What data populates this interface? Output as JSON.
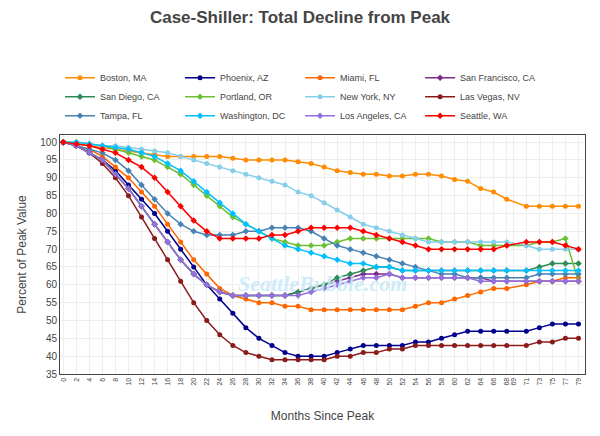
{
  "chart_data": {
    "type": "line",
    "title": "Case-Shiller: Total Decline from Peak",
    "x_label": "Months Since Peak",
    "y_label": "Percent of Peak Value",
    "annotations": [
      "SeattleBubble.com"
    ],
    "x": [
      0,
      2,
      4,
      6,
      8,
      10,
      12,
      14,
      16,
      18,
      20,
      22,
      24,
      26,
      28,
      30,
      32,
      34,
      36,
      38,
      40,
      42,
      44,
      46,
      48,
      50,
      52,
      54,
      56,
      58,
      60,
      62,
      64,
      66,
      68,
      71,
      73,
      75,
      77,
      79
    ],
    "xlim": [
      -0.5,
      80
    ],
    "xticks": [
      0,
      2,
      4,
      6,
      8,
      10,
      12,
      14,
      16,
      18,
      20,
      22,
      24,
      26,
      28,
      30,
      32,
      34,
      36,
      38,
      40,
      42,
      44,
      46,
      48,
      50,
      52,
      54,
      56,
      58,
      60,
      62,
      64,
      66,
      68,
      69,
      71,
      73,
      75,
      77,
      79
    ],
    "ylim": [
      35,
      102
    ],
    "yticks": [
      35,
      40,
      45,
      50,
      55,
      60,
      65,
      70,
      75,
      80,
      85,
      90,
      95,
      100
    ],
    "grid": true,
    "legend": "top",
    "series": [
      {
        "name": "Boston, MA",
        "color": "#FF8C00",
        "marker": "circle",
        "values": [
          100,
          99.5,
          99,
          98.5,
          98,
          97.5,
          97,
          96.5,
          96,
          96,
          96,
          96,
          96,
          95.5,
          95,
          95,
          95,
          95,
          94.5,
          94,
          93,
          92,
          91.5,
          91,
          91,
          90.5,
          90.5,
          91,
          91,
          90.5,
          89.5,
          89,
          87,
          86,
          84,
          82,
          82,
          82,
          82,
          82
        ]
      },
      {
        "name": "Phoenix, AZ",
        "color": "#00008B",
        "marker": "circle",
        "values": [
          100,
          99,
          97,
          95,
          92,
          88,
          84,
          80,
          75,
          70,
          65,
          60,
          56,
          52,
          48,
          45,
          43,
          41,
          40,
          40,
          40,
          41,
          42,
          43,
          43,
          43,
          43,
          44,
          44,
          45,
          46,
          47,
          47,
          47,
          47,
          47,
          48,
          49,
          49,
          49
        ]
      },
      {
        "name": "Miami, FL",
        "color": "#FF6600",
        "marker": "circle",
        "values": [
          100,
          99,
          98,
          96,
          93,
          90,
          86,
          82,
          77,
          72,
          67,
          63,
          59,
          57,
          56,
          55,
          55,
          54,
          54,
          53,
          53,
          53,
          53,
          53,
          53,
          53,
          53,
          54,
          55,
          55,
          56,
          57,
          58,
          59,
          59,
          60,
          61,
          61,
          62,
          62
        ]
      },
      {
        "name": "San Francisco, CA",
        "color": "#7B2D8B",
        "marker": "diamond",
        "values": [
          100,
          99,
          97,
          95,
          91,
          87,
          82,
          77,
          72,
          67,
          63,
          60,
          58,
          57,
          57,
          57,
          57,
          57,
          58,
          59,
          60,
          61,
          62,
          63,
          63,
          63,
          62,
          62,
          62,
          62,
          62,
          62,
          62,
          61,
          61,
          61,
          61,
          61,
          61,
          61
        ]
      },
      {
        "name": "San Diego, CA",
        "color": "#2E8B57",
        "marker": "diamond",
        "values": [
          100,
          99,
          97,
          95,
          91,
          87,
          82,
          77,
          72,
          67,
          63,
          60,
          58,
          57,
          57,
          57,
          57,
          57,
          58,
          59,
          60,
          62,
          63,
          64,
          65,
          65,
          64,
          64,
          64,
          64,
          64,
          64,
          64,
          64,
          64,
          64,
          65,
          66,
          66,
          66
        ]
      },
      {
        "name": "Portland, OR",
        "color": "#6DBF35",
        "marker": "diamond",
        "values": [
          100,
          100,
          99.5,
          99,
          98,
          97,
          96,
          95,
          93,
          91,
          88,
          85,
          82,
          79,
          77,
          75,
          73,
          72,
          71,
          71,
          71,
          72,
          73,
          73,
          73,
          73,
          73,
          73,
          73,
          72,
          72,
          72,
          71,
          71,
          71,
          71,
          72,
          72,
          73,
          61
        ]
      },
      {
        "name": "New York, NY",
        "color": "#87CEEB",
        "marker": "circle",
        "values": [
          100,
          100,
          99.5,
          99,
          99,
          98.5,
          98,
          97.5,
          97,
          96,
          95,
          94,
          93,
          92,
          91,
          90,
          89,
          88,
          86,
          85,
          83,
          81,
          79,
          77,
          76,
          75,
          74,
          73,
          72,
          72,
          72,
          72,
          72,
          72,
          72,
          71,
          70,
          70,
          70,
          70
        ]
      },
      {
        "name": "Las Vegas, NV",
        "color": "#8B1A1A",
        "marker": "circle",
        "values": [
          100,
          99,
          97,
          94,
          90,
          85,
          79,
          73,
          67,
          61,
          55,
          50,
          46,
          43,
          41,
          40,
          39,
          39,
          39,
          39,
          39,
          40,
          40,
          41,
          41,
          42,
          42,
          43,
          43,
          43,
          43,
          43,
          43,
          43,
          43,
          43,
          44,
          44,
          45,
          45
        ]
      },
      {
        "name": "Tampa, FL",
        "color": "#4682B4",
        "marker": "diamond",
        "values": [
          100,
          99,
          98,
          97,
          95,
          92,
          88,
          84,
          80,
          77,
          75,
          74,
          74,
          74,
          75,
          75,
          76,
          76,
          76,
          75,
          73,
          71,
          70,
          69,
          68,
          67,
          66,
          65,
          64,
          63,
          63,
          62,
          62,
          62,
          62,
          62,
          63,
          63,
          63,
          63
        ]
      },
      {
        "name": "Washington, DC",
        "color": "#00BFFF",
        "marker": "diamond",
        "values": [
          100,
          100,
          99.5,
          99,
          98.5,
          98,
          97,
          96,
          94,
          92,
          89,
          86,
          83,
          80,
          77,
          75,
          73,
          71,
          70,
          69,
          68,
          67,
          66,
          66,
          65,
          65,
          64,
          64,
          64,
          64,
          64,
          64,
          64,
          64,
          64,
          64,
          64,
          64,
          64,
          64
        ]
      },
      {
        "name": "Los Angeles, CA",
        "color": "#9370DB",
        "marker": "diamond",
        "values": [
          100,
          99,
          97,
          95,
          91,
          87,
          82,
          77,
          72,
          67,
          63,
          60,
          58,
          57,
          57,
          57,
          57,
          57,
          57,
          58,
          59,
          60,
          61,
          62,
          62,
          63,
          62,
          62,
          62,
          62,
          62,
          62,
          61,
          61,
          61,
          61,
          61,
          61,
          61,
          61
        ]
      },
      {
        "name": "Seattle, WA",
        "color": "#FF0000",
        "marker": "diamond",
        "values": [
          100,
          99.5,
          99,
          98,
          97,
          95,
          93,
          90,
          86,
          82,
          78,
          75,
          73,
          73,
          73,
          73,
          74,
          74,
          75,
          76,
          76,
          76,
          76,
          75,
          74,
          73,
          72,
          71,
          70,
          70,
          70,
          70,
          70,
          70,
          71,
          72,
          72,
          72,
          71,
          70
        ]
      }
    ]
  }
}
